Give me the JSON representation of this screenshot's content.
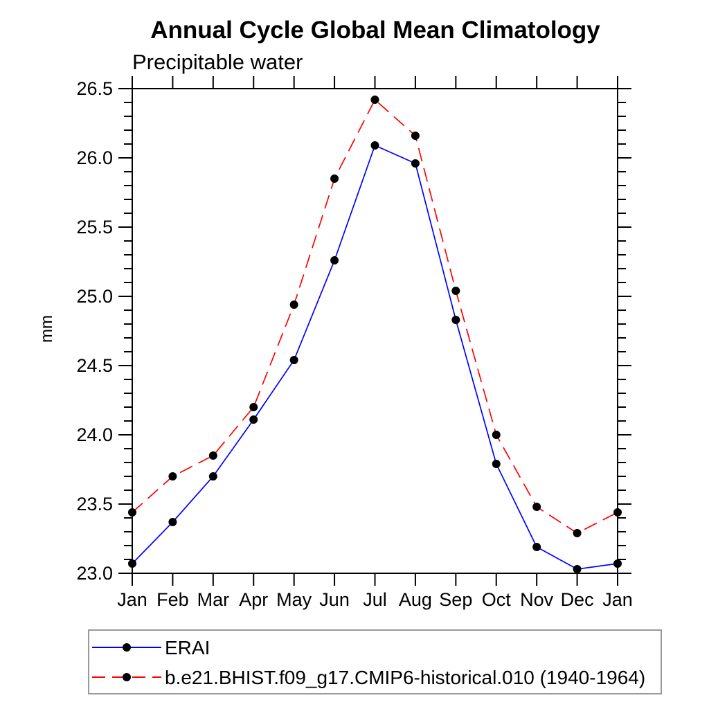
{
  "page": {
    "background_color": "#ffffff",
    "text_color": "#000000"
  },
  "chart_data": {
    "type": "line",
    "title": "Annual Cycle Global Mean Climatology",
    "subtitle": "Precipitable water",
    "ylabel": "mm",
    "xlabel": "",
    "categories": [
      "Jan",
      "Feb",
      "Mar",
      "Apr",
      "May",
      "Jun",
      "Jul",
      "Aug",
      "Sep",
      "Oct",
      "Nov",
      "Dec",
      "Jan"
    ],
    "ylim": [
      23.0,
      26.5
    ],
    "ytick_major_step": 0.5,
    "ytick_minor_step": 0.1,
    "ytick_labels": [
      "23.0",
      "23.5",
      "24.0",
      "24.5",
      "25.0",
      "25.5",
      "26.0",
      "26.5"
    ],
    "grid": false,
    "axis_color": "#000000",
    "legend": {
      "position": "bottom-left",
      "border_color": "#999999",
      "background": "#ffffff"
    },
    "series": [
      {
        "name": "ERAI",
        "color": "#0000ff",
        "line_style": "solid",
        "marker": "filled-circle",
        "marker_color": "#000000",
        "values": [
          23.07,
          23.37,
          23.7,
          24.11,
          24.54,
          25.26,
          26.09,
          25.96,
          24.83,
          23.79,
          23.19,
          23.03,
          23.07
        ]
      },
      {
        "name": "b.e21.BHIST.f09_g17.CMIP6-historical.010 (1940-1964)",
        "color": "#ff0000",
        "line_style": "dashed",
        "marker": "filled-circle",
        "marker_color": "#000000",
        "values": [
          23.44,
          23.7,
          23.85,
          24.2,
          24.94,
          25.85,
          26.42,
          26.16,
          25.04,
          24.0,
          23.48,
          23.29,
          23.44
        ]
      }
    ]
  }
}
